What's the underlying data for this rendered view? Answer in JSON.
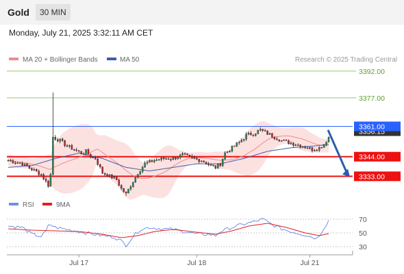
{
  "header": {
    "asset": "Gold",
    "timeframe": "30 MIN",
    "datetime": "Monday, July 21, 2025 3:32:11 AM CET"
  },
  "colors": {
    "ma20": "#f08a8a",
    "ma50": "#3a5fa8",
    "band_fill": "#fbd7d7",
    "up": "#2e8b57",
    "down": "#c62828",
    "resistance_line": "#92c96a",
    "resistance_label": "#5aa02c",
    "current": "#2962ff",
    "support": "#ee1111",
    "arrow": "#2a5cab",
    "rsi": "#6f8fe6",
    "rsi_ma": "#e02020"
  },
  "chart_data": [
    {
      "type": "candlestick",
      "legend": [
        "MA 20 + Bollinger Bands",
        "MA 50"
      ],
      "legend_position": "top-left",
      "watermark": "Research © 2025 Trading Central",
      "x_ticks": [
        "Jul 17",
        "Jul 18",
        "Jul 21"
      ],
      "ylim": [
        3322,
        3395
      ],
      "levels": [
        {
          "value": 3392,
          "label": "3392.00",
          "kind": "resistance"
        },
        {
          "value": 3377,
          "label": "3377.00",
          "kind": "resistance"
        },
        {
          "value": 3361,
          "label": "3361.00",
          "kind": "current"
        },
        {
          "value": 3344,
          "label": "3344.00",
          "kind": "support"
        },
        {
          "value": 3333,
          "label": "3333.00",
          "kind": "support"
        }
      ],
      "hidden_price_label": "3356.15",
      "forecast_arrow": {
        "from": 3359,
        "to": 3333
      },
      "anchors": [
        [
          0,
          3342
        ],
        [
          6,
          3340
        ],
        [
          10,
          3337
        ],
        [
          14,
          3334
        ],
        [
          17,
          3328
        ],
        [
          18,
          3334
        ],
        [
          19,
          3355
        ],
        [
          22,
          3353
        ],
        [
          25,
          3350
        ],
        [
          28,
          3348
        ],
        [
          31,
          3346
        ],
        [
          33,
          3347
        ],
        [
          35,
          3344
        ],
        [
          37,
          3343
        ],
        [
          40,
          3335
        ],
        [
          43,
          3333
        ],
        [
          45,
          3332
        ],
        [
          46,
          3331
        ],
        [
          48,
          3326
        ],
        [
          50,
          3323
        ],
        [
          52,
          3328
        ],
        [
          55,
          3335
        ],
        [
          58,
          3340
        ],
        [
          62,
          3342
        ],
        [
          66,
          3343
        ],
        [
          70,
          3343
        ],
        [
          74,
          3345
        ],
        [
          78,
          3343
        ],
        [
          82,
          3342
        ],
        [
          86,
          3339
        ],
        [
          88,
          3338
        ],
        [
          90,
          3340
        ],
        [
          92,
          3346
        ],
        [
          95,
          3349
        ],
        [
          98,
          3352
        ],
        [
          101,
          3356
        ],
        [
          104,
          3357
        ],
        [
          107,
          3359
        ],
        [
          110,
          3357
        ],
        [
          113,
          3355
        ],
        [
          116,
          3353
        ],
        [
          119,
          3352
        ],
        [
          122,
          3351
        ],
        [
          125,
          3350
        ],
        [
          127,
          3349
        ],
        [
          129,
          3348
        ],
        [
          132,
          3349
        ],
        [
          134,
          3351
        ],
        [
          136,
          3355
        ]
      ],
      "ma50_anchors": [
        [
          0,
          3338
        ],
        [
          10,
          3339
        ],
        [
          20,
          3343
        ],
        [
          30,
          3346
        ],
        [
          40,
          3343
        ],
        [
          50,
          3338
        ],
        [
          60,
          3336
        ],
        [
          70,
          3338
        ],
        [
          80,
          3340
        ],
        [
          90,
          3340
        ],
        [
          100,
          3343
        ],
        [
          110,
          3347
        ],
        [
          120,
          3349
        ],
        [
          130,
          3350
        ],
        [
          136,
          3351
        ]
      ],
      "candle_count": 137
    },
    {
      "type": "line",
      "legend": [
        "RSI",
        "9MA"
      ],
      "y_ticks": [
        70,
        50,
        30
      ],
      "ylim": [
        22,
        78
      ],
      "rsi_anchors": [
        [
          0,
          60
        ],
        [
          6,
          58
        ],
        [
          10,
          48
        ],
        [
          14,
          45
        ],
        [
          16,
          52
        ],
        [
          17,
          60
        ],
        [
          18,
          62
        ],
        [
          20,
          58
        ],
        [
          25,
          55
        ],
        [
          30,
          52
        ],
        [
          35,
          49
        ],
        [
          40,
          46
        ],
        [
          45,
          44
        ],
        [
          48,
          38
        ],
        [
          50,
          32
        ],
        [
          53,
          45
        ],
        [
          56,
          55
        ],
        [
          60,
          58
        ],
        [
          65,
          56
        ],
        [
          70,
          55
        ],
        [
          75,
          52
        ],
        [
          80,
          48
        ],
        [
          85,
          48
        ],
        [
          88,
          46
        ],
        [
          90,
          52
        ],
        [
          95,
          58
        ],
        [
          100,
          63
        ],
        [
          104,
          66
        ],
        [
          108,
          70
        ],
        [
          112,
          62
        ],
        [
          116,
          56
        ],
        [
          120,
          52
        ],
        [
          125,
          48
        ],
        [
          128,
          45
        ],
        [
          131,
          42
        ],
        [
          133,
          52
        ],
        [
          136,
          68
        ]
      ],
      "ma_anchors": [
        [
          0,
          56
        ],
        [
          10,
          54
        ],
        [
          20,
          53
        ],
        [
          30,
          52
        ],
        [
          40,
          48
        ],
        [
          48,
          43
        ],
        [
          55,
          46
        ],
        [
          62,
          52
        ],
        [
          70,
          55
        ],
        [
          80,
          51
        ],
        [
          88,
          48
        ],
        [
          95,
          53
        ],
        [
          102,
          60
        ],
        [
          110,
          64
        ],
        [
          118,
          58
        ],
        [
          126,
          50
        ],
        [
          132,
          46
        ],
        [
          136,
          49
        ]
      ]
    }
  ]
}
